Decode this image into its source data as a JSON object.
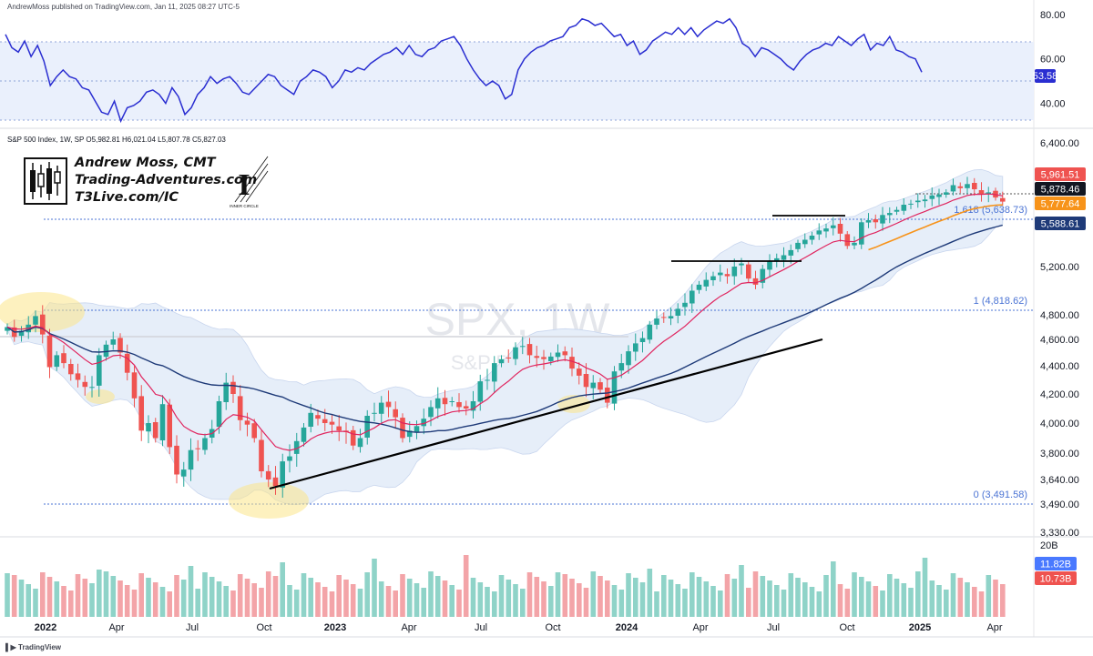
{
  "published_line": "AndrewMoss published on TradingView.com, Jan 11, 2025 08:27 UTC-5",
  "ohlc_line": "S&P 500 Index, 1W, SP  O5,982.81  H6,021.04  L5,807.78  C5,827.03",
  "watermark": {
    "symbol": "SPX, 1W",
    "name": "S&P 500 Index"
  },
  "author": {
    "name": "Andrew Moss, CMT",
    "site": "Trading-Adventures.com",
    "link": "T3Live.com/IC"
  },
  "inner_circle_logo": {
    "letter": "I",
    "caption": "INNER CIRCLE"
  },
  "footer_brand": "TradingView",
  "colors": {
    "up": "#26a69a",
    "down": "#ef5350",
    "rsi_line": "#2a2ed1",
    "rsi_band": "#e8eefb",
    "ema_fast": "#e0245e",
    "ema_mid": "#f7931a",
    "sma_slow": "#1e3a78",
    "bands": "#dfe8f7",
    "fib": "#4a73d4",
    "trendline": "#000000",
    "highlight": "#fbe58a"
  },
  "chart_data": [
    {
      "type": "line",
      "name": "RSI",
      "ylim": [
        30,
        84
      ],
      "y_ticks": [
        "80.00",
        "60.00",
        "40.00"
      ],
      "bands": [
        70,
        50,
        30
      ],
      "current_value": "53.58",
      "values": [
        71,
        65,
        63,
        68,
        61,
        66,
        59,
        48,
        52,
        55,
        52,
        51,
        47,
        46,
        41,
        36,
        35,
        41,
        32,
        38,
        39,
        41,
        45,
        46,
        44,
        40,
        47,
        43,
        35,
        38,
        44,
        47,
        52,
        49,
        51,
        52,
        49,
        45,
        44,
        47,
        50,
        53,
        52,
        48,
        46,
        44,
        50,
        52,
        55,
        54,
        52,
        47,
        50,
        55,
        54,
        56,
        55,
        58,
        60,
        62,
        63,
        65,
        62,
        66,
        62,
        61,
        64,
        65,
        68,
        69,
        70,
        66,
        60,
        55,
        51,
        48,
        50,
        48,
        42,
        44,
        55,
        60,
        63,
        65,
        66,
        68,
        69,
        70,
        74,
        75,
        78,
        77,
        75,
        76,
        73,
        70,
        71,
        66,
        68,
        62,
        64,
        68,
        70,
        72,
        71,
        74,
        71,
        74,
        70,
        73,
        75,
        77,
        76,
        78,
        74,
        67,
        65,
        61,
        65,
        64,
        62,
        60,
        57,
        55,
        59,
        62,
        64,
        65,
        67,
        66,
        70,
        68,
        66,
        69,
        71,
        64,
        67,
        66,
        70,
        64,
        63,
        61,
        60,
        54
      ]
    },
    {
      "type": "candlestick",
      "name": "S&P 500 Index, 1W",
      "y_ticks": [
        "6,400.00",
        "5,200.00",
        "4,800.00",
        "4,600.00",
        "4,400.00",
        "4,200.00",
        "4,000.00",
        "3,800.00",
        "3,640.00",
        "3,490.00",
        "3,330.00"
      ],
      "x_ticks": [
        "2022",
        "Apr",
        "Jul",
        "Oct",
        "2023",
        "Apr",
        "Jul",
        "Oct",
        "2024",
        "Apr",
        "Jul",
        "Oct",
        "2025",
        "Apr"
      ],
      "price_labels": [
        {
          "value": "5,961.51",
          "color": "#ef5350"
        },
        {
          "value": "5,878.46",
          "color": "#131722"
        },
        {
          "value": "5,777.64",
          "color": "#f7931a"
        },
        {
          "value": "5,588.61",
          "color": "#1e3a78"
        }
      ],
      "fib_levels": [
        {
          "label": "1.618 (5,638.73)",
          "value": 5638.73
        },
        {
          "label": "1 (4,818.62)",
          "value": 4818.62
        },
        {
          "label": "0 (3,491.58)",
          "value": 3491.58
        }
      ],
      "closes": [
        4700,
        4620,
        4670,
        4720,
        4790,
        4640,
        4390,
        4480,
        4420,
        4340,
        4300,
        4250,
        4250,
        4480,
        4560,
        4600,
        4500,
        4350,
        4170,
        3950,
        4000,
        3900,
        4130,
        3840,
        3670,
        3700,
        3820,
        3830,
        3900,
        3960,
        4150,
        4280,
        4200,
        4020,
        3990,
        3900,
        3690,
        3640,
        3600,
        3750,
        3780,
        3880,
        3970,
        4070,
        4030,
        4000,
        3990,
        3950,
        3940,
        3850,
        3900,
        4050,
        4070,
        4140,
        4110,
        4040,
        3900,
        3950,
        3980,
        4030,
        4110,
        4170,
        4130,
        4150,
        4110,
        4100,
        4150,
        4290,
        4300,
        4420,
        4450,
        4460,
        4540,
        4550,
        4480,
        4460,
        4450,
        4470,
        4500,
        4480,
        4380,
        4330,
        4250,
        4280,
        4230,
        4140,
        4360,
        4420,
        4510,
        4570,
        4610,
        4720,
        4770,
        4780,
        4790,
        4850,
        4900,
        5000,
        5050,
        5090,
        5120,
        5150,
        5120,
        5200,
        5230,
        5100,
        5050,
        5180,
        5250,
        5280,
        5310,
        5360,
        5430,
        5460,
        5500,
        5550,
        5570,
        5600,
        5520,
        5400,
        5430,
        5630,
        5650,
        5630,
        5700,
        5720,
        5750,
        5800,
        5810,
        5840,
        5850,
        5890,
        5900,
        5920,
        5990,
        5960,
        6000,
        5950,
        5900,
        5920,
        5870,
        5830
      ]
    },
    {
      "type": "bar",
      "name": "Volume",
      "y_ticks": [
        "20B"
      ],
      "labels": [
        {
          "value": "11.82B",
          "color": "#2962ff"
        },
        {
          "value": "10.73B",
          "color": "#ef5350"
        }
      ]
    }
  ]
}
